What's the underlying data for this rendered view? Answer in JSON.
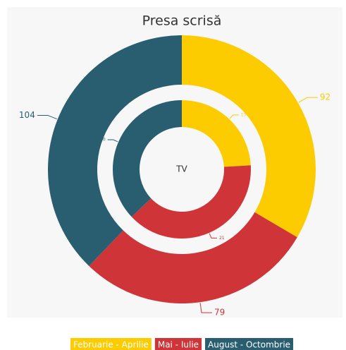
{
  "chart_data": {
    "type": "donut",
    "categories": [
      "Februarie - Aprilie",
      "Mai - Iulie",
      "August - Octombrie"
    ],
    "colors": [
      "#fccb00",
      "#cf3538",
      "#295e70"
    ],
    "series": [
      {
        "name": "Presa scrisă",
        "values": [
          92,
          79,
          104
        ]
      },
      {
        "name": "TV",
        "values": [
          13,
          21,
          20
        ]
      }
    ]
  }
}
